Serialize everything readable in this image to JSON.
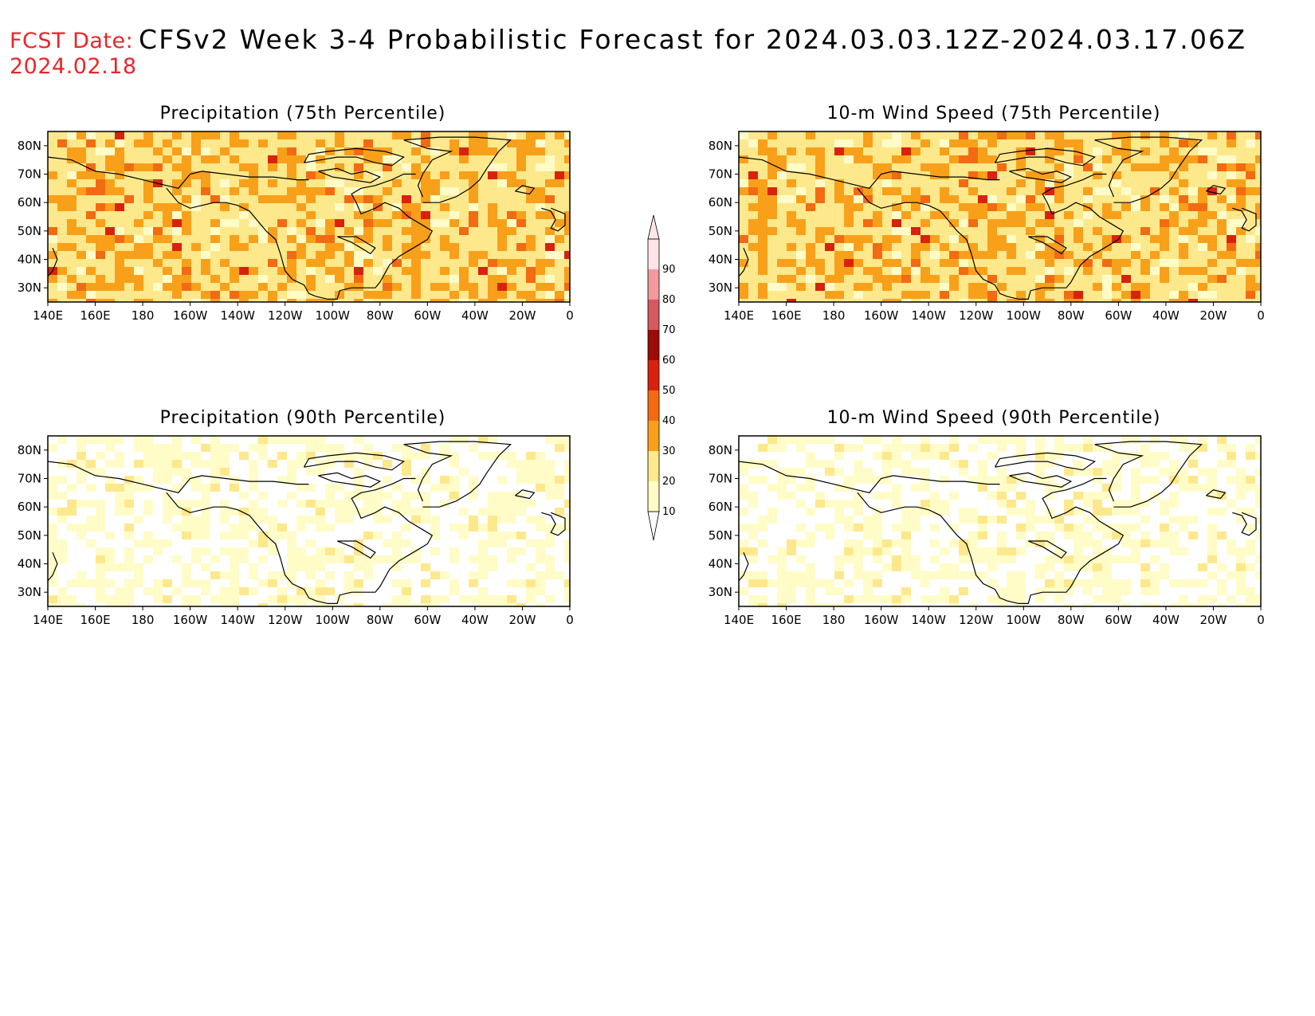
{
  "header": {
    "fcst_label": "FCST Date:",
    "fcst_date": "2024.02.18",
    "title": "CFSv2 Week 3-4 Probabilistic Forecast for 2024.03.03.12Z-2024.03.17.06Z"
  },
  "panels": [
    {
      "title": "Precipitation (75th Percentile)",
      "intensity": 3
    },
    {
      "title": "10-m Wind Speed (75th Percentile)",
      "intensity": 3
    },
    {
      "title": "Precipitation (90th Percentile)",
      "intensity": 1
    },
    {
      "title": "10-m Wind Speed (90th Percentile)",
      "intensity": 1
    }
  ],
  "axes": {
    "lon_labels": [
      "140E",
      "160E",
      "180",
      "160W",
      "140W",
      "120W",
      "100W",
      "80W",
      "60W",
      "40W",
      "20W",
      "0"
    ],
    "lat_labels": [
      "80N",
      "70N",
      "60N",
      "50N",
      "40N",
      "30N"
    ]
  },
  "colorbar": {
    "levels": [
      "10",
      "20",
      "30",
      "40",
      "50",
      "60",
      "70",
      "80",
      "90"
    ],
    "colors": [
      "#fffcc8",
      "#fde88c",
      "#f9a01b",
      "#f26b12",
      "#d9220d",
      "#9e0a08",
      "#d45a5f",
      "#f29aa0",
      "#ffe5e8"
    ]
  }
}
